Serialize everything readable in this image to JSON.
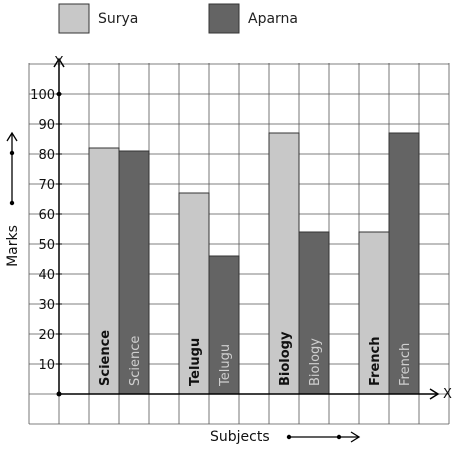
{
  "chart_data": {
    "type": "bar",
    "categories": [
      "Science",
      "Telugu",
      "Biology",
      "French"
    ],
    "series": [
      {
        "name": "Surya",
        "values": [
          82,
          67,
          87,
          54
        ],
        "color": "#c8c8c8",
        "label_color": "#111111"
      },
      {
        "name": "Aparna",
        "values": [
          81,
          46,
          54,
          87
        ],
        "color": "#646464",
        "label_color": "#cfcfcf"
      }
    ],
    "xlabel": "Subjects",
    "ylabel": "Marks",
    "x_axis_letter": "X",
    "y_axis_letter": "Y",
    "ylim": [
      0,
      110
    ],
    "yticks": [
      10,
      20,
      30,
      40,
      50,
      60,
      70,
      80,
      90,
      100
    ],
    "grid": true,
    "legend": "top-left"
  }
}
